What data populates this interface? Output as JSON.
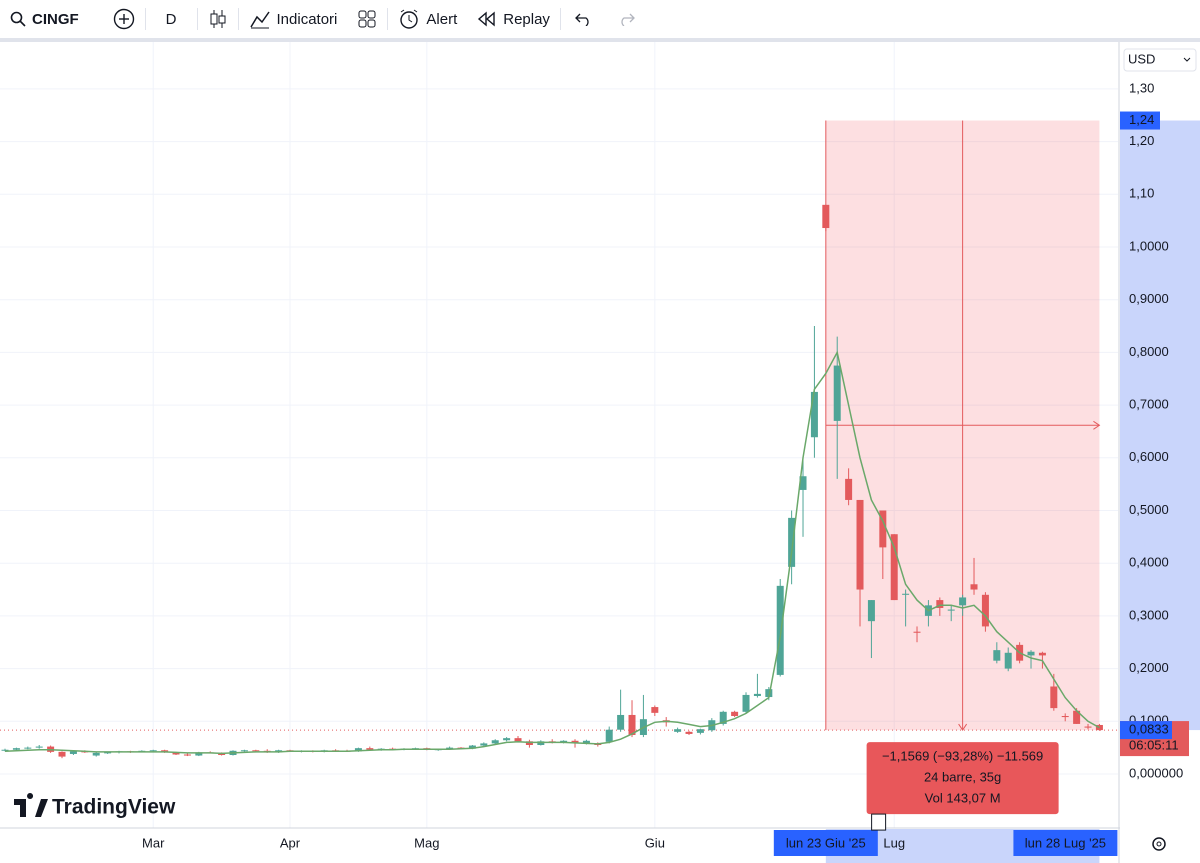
{
  "toolbar": {
    "symbol": "CINGF",
    "interval": "D",
    "indicators": "Indicatori",
    "alert": "Alert",
    "replay": "Replay"
  },
  "currency": "USD",
  "brand": "TradingView",
  "chart_data": {
    "type": "candlestick",
    "up_color": "#4fa597",
    "down_color": "#e35a5c",
    "candles": [
      [
        0.045,
        0.048,
        0.043,
        0.046
      ],
      [
        0.046,
        0.05,
        0.045,
        0.049
      ],
      [
        0.049,
        0.052,
        0.047,
        0.05
      ],
      [
        0.05,
        0.055,
        0.048,
        0.052
      ],
      [
        0.052,
        0.054,
        0.04,
        0.042
      ],
      [
        0.042,
        0.043,
        0.03,
        0.033
      ],
      [
        0.038,
        0.044,
        0.036,
        0.043
      ],
      [
        0.043,
        0.045,
        0.04,
        0.041
      ],
      [
        0.035,
        0.042,
        0.033,
        0.04
      ],
      [
        0.04,
        0.042,
        0.038,
        0.041
      ],
      [
        0.041,
        0.044,
        0.039,
        0.043
      ],
      [
        0.043,
        0.044,
        0.04,
        0.042
      ],
      [
        0.042,
        0.045,
        0.041,
        0.044
      ],
      [
        0.044,
        0.046,
        0.042,
        0.045
      ],
      [
        0.045,
        0.046,
        0.04,
        0.041
      ],
      [
        0.041,
        0.042,
        0.036,
        0.037
      ],
      [
        0.037,
        0.04,
        0.034,
        0.035
      ],
      [
        0.035,
        0.042,
        0.034,
        0.041
      ],
      [
        0.041,
        0.043,
        0.039,
        0.04
      ],
      [
        0.04,
        0.041,
        0.035,
        0.036
      ],
      [
        0.036,
        0.045,
        0.035,
        0.044
      ],
      [
        0.044,
        0.046,
        0.042,
        0.045
      ],
      [
        0.045,
        0.046,
        0.043,
        0.044
      ],
      [
        0.044,
        0.047,
        0.04,
        0.041
      ],
      [
        0.041,
        0.046,
        0.04,
        0.045
      ],
      [
        0.045,
        0.046,
        0.042,
        0.043
      ],
      [
        0.043,
        0.045,
        0.041,
        0.044
      ],
      [
        0.044,
        0.045,
        0.041,
        0.042
      ],
      [
        0.042,
        0.046,
        0.041,
        0.045
      ],
      [
        0.045,
        0.047,
        0.043,
        0.044
      ],
      [
        0.044,
        0.046,
        0.042,
        0.043
      ],
      [
        0.043,
        0.05,
        0.042,
        0.049
      ],
      [
        0.049,
        0.052,
        0.045,
        0.046
      ],
      [
        0.046,
        0.049,
        0.044,
        0.048
      ],
      [
        0.048,
        0.05,
        0.046,
        0.047
      ],
      [
        0.047,
        0.049,
        0.045,
        0.048
      ],
      [
        0.048,
        0.05,
        0.046,
        0.049
      ],
      [
        0.049,
        0.05,
        0.045,
        0.046
      ],
      [
        0.046,
        0.048,
        0.044,
        0.047
      ],
      [
        0.047,
        0.052,
        0.046,
        0.05
      ],
      [
        0.05,
        0.051,
        0.047,
        0.048
      ],
      [
        0.048,
        0.055,
        0.047,
        0.054
      ],
      [
        0.054,
        0.06,
        0.052,
        0.058
      ],
      [
        0.058,
        0.066,
        0.056,
        0.064
      ],
      [
        0.064,
        0.07,
        0.062,
        0.068
      ],
      [
        0.068,
        0.072,
        0.06,
        0.062
      ],
      [
        0.062,
        0.065,
        0.05,
        0.055
      ],
      [
        0.055,
        0.064,
        0.054,
        0.062
      ],
      [
        0.062,
        0.066,
        0.058,
        0.06
      ],
      [
        0.06,
        0.064,
        0.058,
        0.063
      ],
      [
        0.063,
        0.066,
        0.05,
        0.058
      ],
      [
        0.058,
        0.065,
        0.056,
        0.063
      ],
      [
        0.058,
        0.06,
        0.052,
        0.055
      ],
      [
        0.061,
        0.09,
        0.058,
        0.084
      ],
      [
        0.084,
        0.16,
        0.08,
        0.112
      ],
      [
        0.112,
        0.14,
        0.07,
        0.074
      ],
      [
        0.074,
        0.15,
        0.07,
        0.104
      ],
      [
        0.127,
        0.13,
        0.11,
        0.116
      ],
      [
        0.102,
        0.108,
        0.09,
        0.098
      ],
      [
        0.08,
        0.088,
        0.078,
        0.085
      ],
      [
        0.08,
        0.082,
        0.074,
        0.076
      ],
      [
        0.078,
        0.086,
        0.075,
        0.085
      ],
      [
        0.083,
        0.106,
        0.08,
        0.102
      ],
      [
        0.095,
        0.12,
        0.092,
        0.118
      ],
      [
        0.118,
        0.12,
        0.108,
        0.11
      ],
      [
        0.118,
        0.155,
        0.115,
        0.15
      ],
      [
        0.148,
        0.19,
        0.145,
        0.152
      ],
      [
        0.146,
        0.165,
        0.14,
        0.161
      ],
      [
        0.188,
        0.37,
        0.185,
        0.357
      ],
      [
        0.393,
        0.5,
        0.36,
        0.486
      ],
      [
        0.539,
        0.6,
        0.45,
        0.565
      ],
      [
        0.639,
        0.85,
        0.6,
        0.725
      ],
      [
        1.08,
        1.08,
        1.03,
        1.036
      ],
      [
        0.67,
        0.83,
        0.56,
        0.775
      ],
      [
        0.56,
        0.58,
        0.51,
        0.52
      ],
      [
        0.52,
        0.52,
        0.28,
        0.35
      ],
      [
        0.29,
        0.33,
        0.22,
        0.33
      ],
      [
        0.5,
        0.5,
        0.37,
        0.43
      ],
      [
        0.455,
        0.455,
        0.33,
        0.33
      ],
      [
        0.34,
        0.35,
        0.28,
        0.342
      ],
      [
        0.27,
        0.28,
        0.25,
        0.268
      ],
      [
        0.3,
        0.33,
        0.28,
        0.32
      ],
      [
        0.33,
        0.335,
        0.3,
        0.315
      ],
      [
        0.31,
        0.32,
        0.29,
        0.312
      ],
      [
        0.32,
        0.34,
        0.3,
        0.335
      ],
      [
        0.36,
        0.41,
        0.34,
        0.35
      ],
      [
        0.34,
        0.345,
        0.27,
        0.28
      ],
      [
        0.215,
        0.25,
        0.21,
        0.235
      ],
      [
        0.2,
        0.24,
        0.195,
        0.23
      ],
      [
        0.245,
        0.25,
        0.21,
        0.215
      ],
      [
        0.225,
        0.235,
        0.2,
        0.232
      ],
      [
        0.23,
        0.232,
        0.2,
        0.225
      ],
      [
        0.166,
        0.19,
        0.12,
        0.125
      ],
      [
        0.11,
        0.115,
        0.1,
        0.108
      ],
      [
        0.12,
        0.125,
        0.095,
        0.095
      ],
      [
        0.09,
        0.095,
        0.085,
        0.088
      ],
      [
        0.093,
        0.095,
        0.082,
        0.0833
      ]
    ],
    "ma": {
      "color": "#6aa86a",
      "values": [
        0.043,
        0.044,
        0.045,
        0.046,
        0.046,
        0.045,
        0.044,
        0.043,
        0.042,
        0.042,
        0.042,
        0.042,
        0.042,
        0.042,
        0.042,
        0.041,
        0.04,
        0.04,
        0.04,
        0.039,
        0.04,
        0.041,
        0.042,
        0.042,
        0.042,
        0.043,
        0.043,
        0.043,
        0.043,
        0.043,
        0.043,
        0.044,
        0.045,
        0.046,
        0.046,
        0.047,
        0.047,
        0.047,
        0.047,
        0.047,
        0.048,
        0.049,
        0.052,
        0.056,
        0.06,
        0.061,
        0.06,
        0.06,
        0.06,
        0.06,
        0.059,
        0.058,
        0.057,
        0.06,
        0.066,
        0.076,
        0.088,
        0.098,
        0.1,
        0.098,
        0.094,
        0.09,
        0.092,
        0.098,
        0.105,
        0.115,
        0.13,
        0.145,
        0.26,
        0.42,
        0.6,
        0.73,
        0.76,
        0.8,
        0.7,
        0.6,
        0.52,
        0.48,
        0.43,
        0.36,
        0.33,
        0.31,
        0.32,
        0.32,
        0.315,
        0.32,
        0.3,
        0.27,
        0.25,
        0.23,
        0.22,
        0.215,
        0.18,
        0.145,
        0.12,
        0.1,
        0.088
      ]
    },
    "xlim": [
      -0.44,
      97.63
    ],
    "xticks": [
      {
        "value": 13,
        "label": "Mar"
      },
      {
        "value": 25,
        "label": "Apr"
      },
      {
        "value": 37,
        "label": "Mag"
      },
      {
        "value": 57,
        "label": "Giu"
      },
      {
        "value": 78,
        "label": "Lug"
      }
    ],
    "ylim": [
      -0.1025,
      1.389
    ],
    "yticks": [
      {
        "value": 0,
        "label": "0,000000"
      },
      {
        "value": 0.1,
        "label": "0,1000"
      },
      {
        "value": 0.2,
        "label": "0,2000"
      },
      {
        "value": 0.3,
        "label": "0,3000"
      },
      {
        "value": 0.4,
        "label": "0,4000"
      },
      {
        "value": 0.5,
        "label": "0,5000"
      },
      {
        "value": 0.6,
        "label": "0,6000"
      },
      {
        "value": 0.7,
        "label": "0,7000"
      },
      {
        "value": 0.8,
        "label": "0,8000"
      },
      {
        "value": 0.9,
        "label": "0,9000"
      },
      {
        "value": 1,
        "label": "1,0000"
      },
      {
        "value": 1.1,
        "label": "1,10"
      },
      {
        "value": 1.2,
        "label": "1,20"
      },
      {
        "value": 1.3,
        "label": "1,30"
      }
    ],
    "grid": true,
    "countdown": "06:05:11",
    "measure": {
      "start": 72,
      "end": 96,
      "start_label": "lun 23 Giu '25",
      "end_label": "lun 28 Lug '25",
      "high": {
        "value": 1.24,
        "label": "1,24"
      },
      "low": {
        "value": 0.0833,
        "label": "0,0833"
      },
      "lines": [
        "−1,1569 (−93,28%) −11.569",
        "24 barre, 35g",
        "Vol 143,07 M"
      ]
    }
  }
}
